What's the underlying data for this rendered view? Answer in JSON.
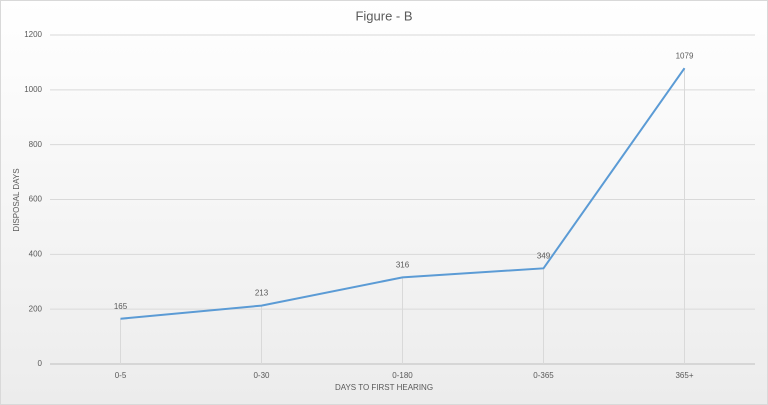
{
  "chart_data": {
    "type": "line",
    "title": "Figure - B",
    "x_label": "DAYS TO FIRST HEARING",
    "y_label": "DISPOSAL DAYS",
    "categories": [
      "0-5",
      "0-30",
      "0-180",
      "0-365",
      "365+"
    ],
    "values": [
      165,
      213,
      316,
      349,
      1079
    ],
    "color": "#5b9bd5",
    "ylim": [
      0,
      1200
    ],
    "yticks": [
      0,
      200,
      400,
      600,
      800,
      1000,
      1200
    ],
    "grid": true
  }
}
